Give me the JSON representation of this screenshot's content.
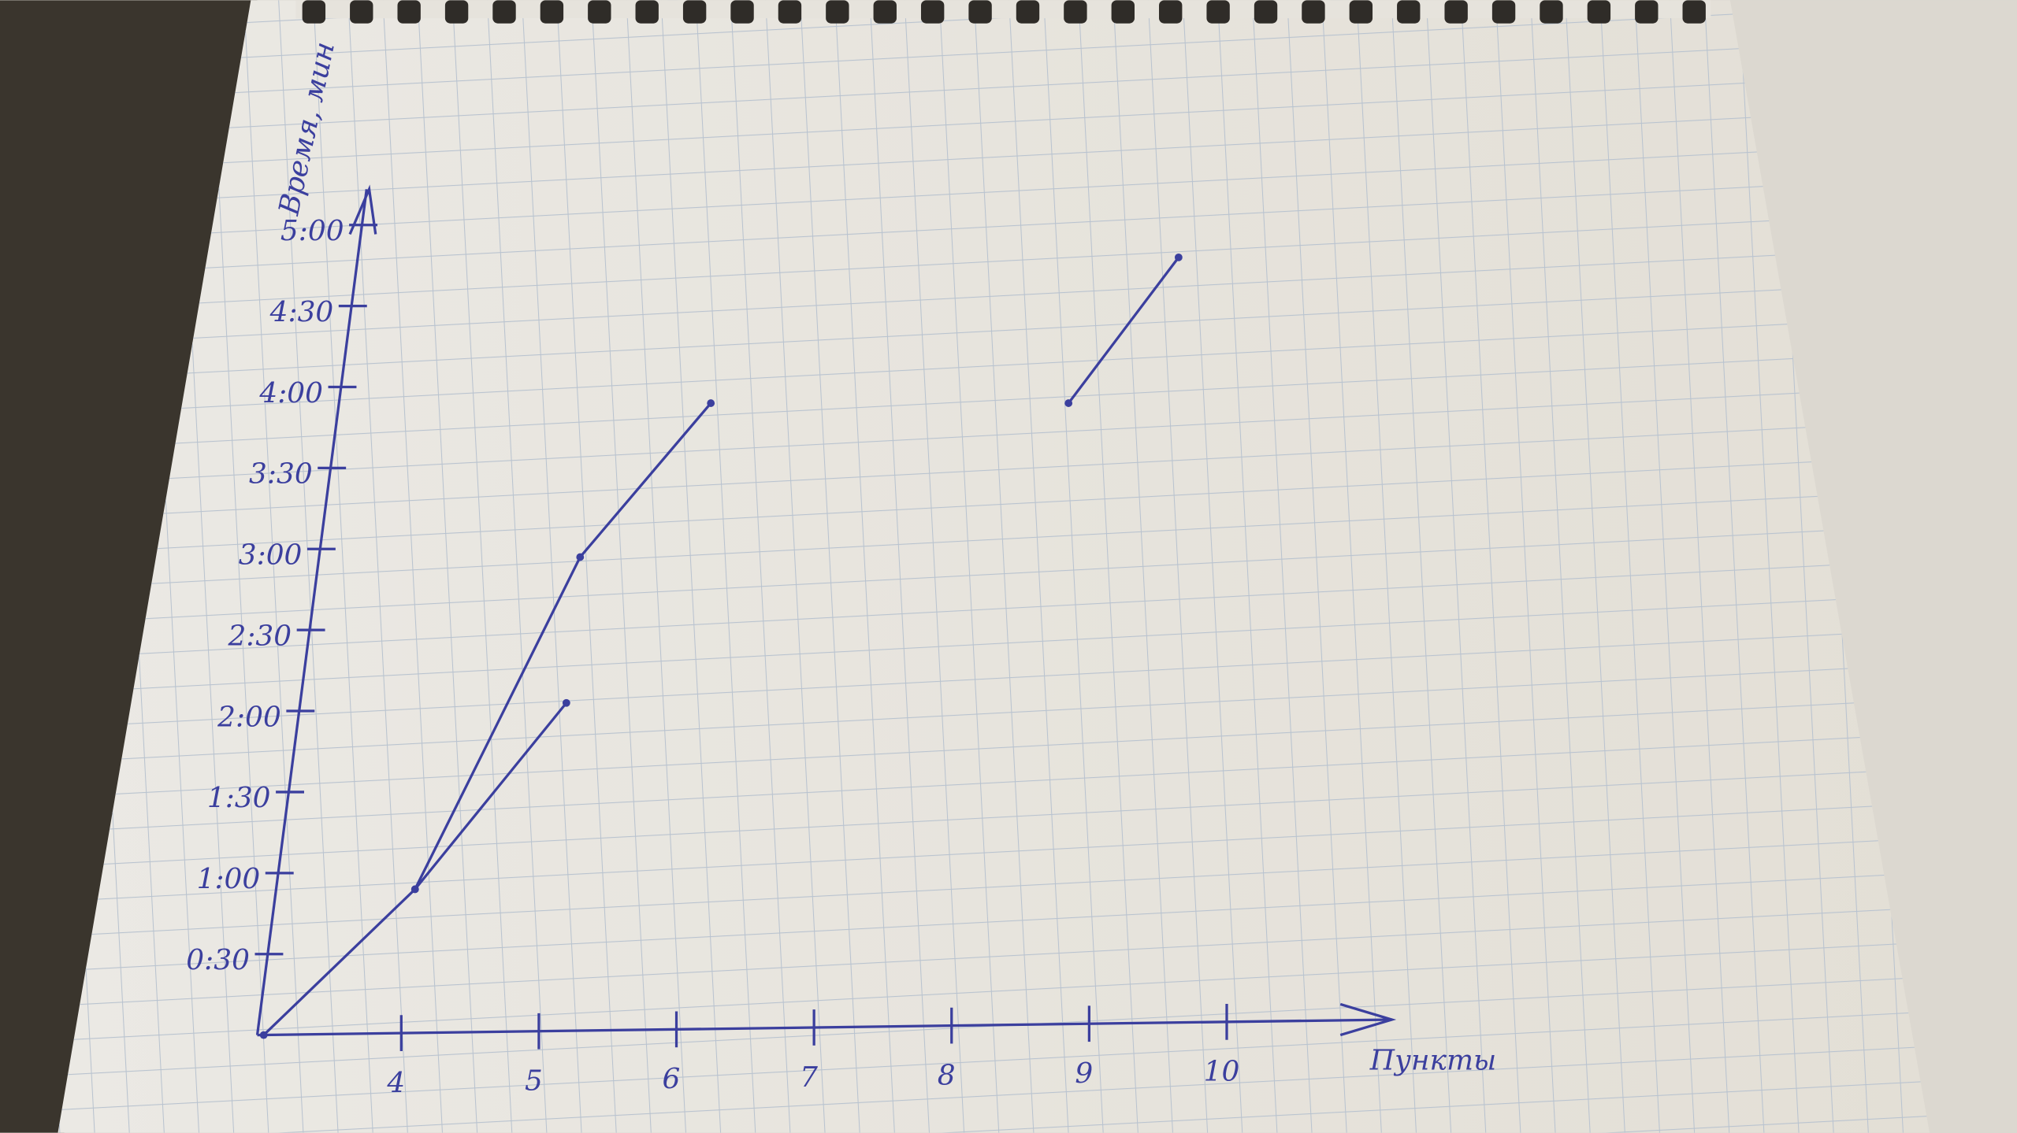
{
  "chart_data": {
    "type": "line",
    "x_label": "Пункты",
    "y_label": "Время, мин",
    "xlim": [
      3,
      11.2
    ],
    "ylim": [
      0,
      5.3
    ],
    "xticks": [
      4,
      5,
      6,
      7,
      8,
      9,
      10
    ],
    "yticks": [
      {
        "value": 0.5,
        "label": "0:30"
      },
      {
        "value": 1,
        "label": "1:00"
      },
      {
        "value": 1.5,
        "label": "1:30"
      },
      {
        "value": 2,
        "label": "2:00"
      },
      {
        "value": 2.5,
        "label": "2:30"
      },
      {
        "value": 3,
        "label": "3:00"
      },
      {
        "value": 3.5,
        "label": "3:30"
      },
      {
        "value": 4,
        "label": "4:00"
      },
      {
        "value": 4.5,
        "label": "4:30"
      },
      {
        "value": 5,
        "label": "5:00"
      }
    ],
    "series": [
      {
        "color": "#3b3f9e",
        "x": [
          3,
          4.1,
          5.3,
          6.25
        ],
        "values": [
          0,
          0.9,
          2.95,
          3.9
        ]
      },
      {
        "color": "#3b3f9e",
        "x": [
          4.1,
          5.2
        ],
        "values": [
          0.9,
          2.05
        ]
      },
      {
        "color": "#3b3f9e",
        "x": [
          8.85,
          9.65
        ],
        "values": [
          3.9,
          4.8
        ]
      }
    ]
  }
}
